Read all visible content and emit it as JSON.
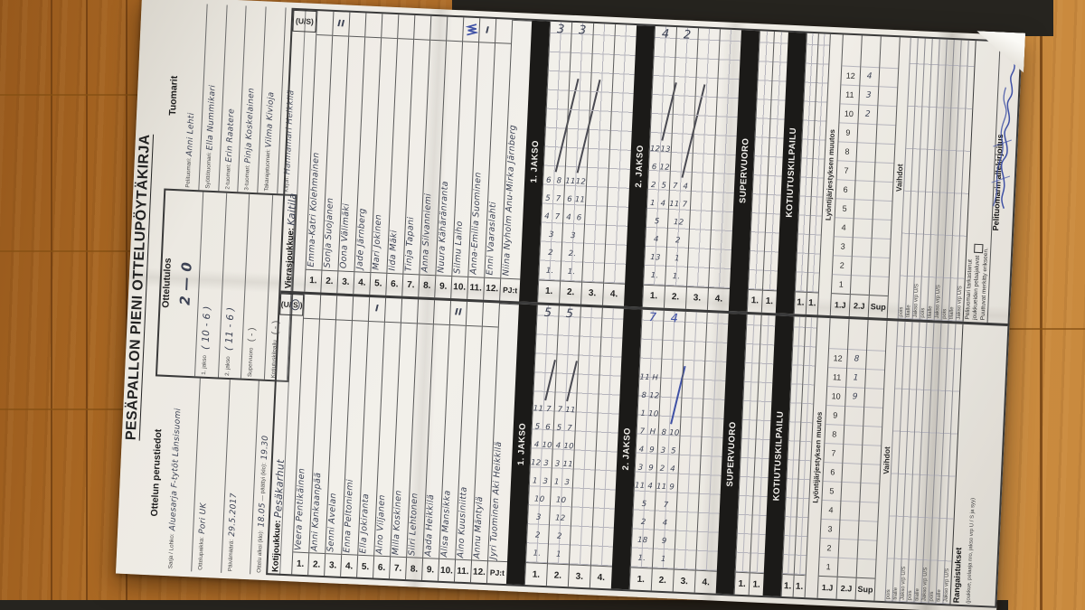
{
  "photo": {
    "wood_base": "#b5722c",
    "wood_light": "#ca8a3e",
    "plank_line": "#6e3d10",
    "dark_band": "#26241f",
    "paper": "#edeae3",
    "ink_print": "#2b2b2b",
    "ink_pen": "#3c4254",
    "ink_blue": "#3f51a5",
    "bar_black": "#1b1a18",
    "grid_line": "#b5b4bc"
  },
  "form": {
    "title": "PESÄPALLON PIENI OTTELUPÖYTÄKIRJA",
    "perustiedot": {
      "header": "Ottelun perustiedot",
      "fields": [
        {
          "label": "Sarja",
          "label2": "Lohko",
          "value": "Aluesarja F-tytöt Länsisuomi"
        },
        {
          "label": "Ottelupaikka",
          "value": "Pori UK"
        },
        {
          "label": "Päivämäärä",
          "value": "29.5.2017"
        },
        {
          "label": "Ottelu alkoi (klo)",
          "value": "18.05",
          "label2": "päättyi (klo)",
          "value2": "19.30"
        }
      ]
    },
    "ottelutulos": {
      "header": "Ottelutulos",
      "score": "2 — 0",
      "entries": [
        {
          "value": "( 10 - 6 )",
          "label": "1. jakso",
          "handwritten": true
        },
        {
          "value": "( 11 - 6 )",
          "label": "2. jakso",
          "handwritten": true
        },
        {
          "value": "(      -      )",
          "label": "Supervuoro",
          "handwritten": false
        },
        {
          "value": "(      -      )",
          "label": "Kotiutuskilpailu",
          "handwritten": false
        }
      ]
    },
    "tuomarit": {
      "header": "Tuomarit",
      "rows": [
        {
          "role": "Pelituomari",
          "name": "Anni Lehti"
        },
        {
          "role": "Syöttötuomari",
          "name": "Ella Nummikari"
        },
        {
          "role": "2-tuomari",
          "name": "Erin Raatere"
        },
        {
          "role": "3-tuomari",
          "name": "Pinja Koskelainen"
        },
        {
          "role": "Takarajatuomari",
          "name": "Vilma Kivioja"
        },
        {
          "role": "Kirjuri",
          "name": "Hannamari Heikkilä"
        }
      ]
    },
    "sections": {
      "jakso1": "1. JAKSO",
      "jakso2": "2. JAKSO",
      "supervuoro": "SUPERVUORO",
      "kotiutus": "KOTIUTUSKILPAILU",
      "lyonti": "Lyöntijärjestyksen muutos",
      "vaihdot": "Vaihdot",
      "vaihdot_cols": [
        "pois",
        "tilalle",
        "Jakso vrp U/S",
        "pois",
        "tilalle",
        "Jakso vrp U/S",
        "pois",
        "tilalle",
        "Jakso vrp U/S"
      ],
      "lyonti_rows": [
        "1.J",
        "2.J",
        "Sup"
      ],
      "us_header": "(U/S)",
      "pjt_label": "PJ:t"
    },
    "teams": {
      "away": {
        "label": "Vierasjoukkue:",
        "name": "Kaitila",
        "us_circled": false,
        "players": [
          {
            "no": "1.",
            "name": "Emma-Katri Kolehmainen",
            "mark": ""
          },
          {
            "no": "2.",
            "name": "Sonja Suojanen",
            "mark": "II"
          },
          {
            "no": "3.",
            "name": "Oona Välimäki",
            "mark": ""
          },
          {
            "no": "4.",
            "name": "Jade Järnberg",
            "mark": ""
          },
          {
            "no": "5.",
            "name": "Mari Jokinen",
            "mark": ""
          },
          {
            "no": "6.",
            "name": "Iida Mäki",
            "mark": ""
          },
          {
            "no": "7.",
            "name": "Tinja Tapani",
            "mark": ""
          },
          {
            "no": "8.",
            "name": "Anna Silvanniemi",
            "mark": ""
          },
          {
            "no": "9.",
            "name": "Nuura Kähäränranta",
            "mark": ""
          },
          {
            "no": "10.",
            "name": "Silmu Laiho",
            "mark": "scribble"
          },
          {
            "no": "11.",
            "name": "Anna-Emilia Suominen",
            "mark": "I"
          },
          {
            "no": "12.",
            "name": "Enni Vaaraslahti",
            "mark": ""
          }
        ],
        "pjt": "Niina Nyholm  Anu-Mirka Järnberg",
        "grid1": [
          {
            "label": "1.",
            "entries": [
              "1.",
              "2",
              "3",
              "4|7",
              "5|7",
              "6|8"
            ],
            "total": "3",
            "line": "pen"
          },
          {
            "label": "2.",
            "entries": [
              "1.",
              "2.",
              "3",
              "4|6",
              "6|11",
              "11|12"
            ],
            "total": "3",
            "line": "pen"
          },
          {
            "label": "3.",
            "entries": []
          },
          {
            "label": "4.",
            "entries": []
          }
        ],
        "grid2": [
          {
            "label": "1.",
            "entries": [
              "1.",
              "13",
              "4",
              "5",
              "1|4",
              "2|5",
              "6|12",
              "12|13"
            ],
            "total": "4",
            "line": "pen"
          },
          {
            "label": "2.",
            "entries": [
              "1.",
              "1",
              "2",
              "12",
              "11|7",
              "7|4"
            ],
            "total": "2",
            "line": "pen"
          },
          {
            "label": "3.",
            "entries": []
          },
          {
            "label": "4.",
            "entries": []
          }
        ],
        "sv": [
          {
            "label": "1."
          },
          {
            "label": "1."
          }
        ],
        "kk": [
          {
            "label": "1."
          },
          {
            "label": "1."
          }
        ],
        "lyonti_1j": [
          "1",
          "2",
          "3",
          "4",
          "5",
          "6",
          "7",
          "8",
          "9",
          "10",
          "11",
          "12"
        ],
        "lyonti_2j": [
          "",
          "",
          "",
          "",
          "",
          "",
          "",
          "",
          "",
          "2",
          "3",
          "4"
        ],
        "lyonti_sup": [
          "",
          "",
          "",
          "",
          "",
          "",
          "",
          "",
          "",
          "",
          "",
          ""
        ]
      },
      "home": {
        "label": "Kotijoukkue:",
        "name": "Pesäkarhut",
        "us_circled": true,
        "players": [
          {
            "no": "1.",
            "name": "Veera Pentikäinen",
            "mark": ""
          },
          {
            "no": "2.",
            "name": "Anni Kankaanpää",
            "mark": ""
          },
          {
            "no": "3.",
            "name": "Senni Avelan",
            "mark": ""
          },
          {
            "no": "4.",
            "name": "Enna Peltoniemi",
            "mark": ""
          },
          {
            "no": "5.",
            "name": "Ella Jokiranta",
            "mark": "I"
          },
          {
            "no": "6.",
            "name": "Aino Viljanen",
            "mark": ""
          },
          {
            "no": "7.",
            "name": "Milla Koskinen",
            "mark": ""
          },
          {
            "no": "8.",
            "name": "Siiri Lehtonen",
            "mark": ""
          },
          {
            "no": "9.",
            "name": "Aada Heikkilä",
            "mark": ""
          },
          {
            "no": "10.",
            "name": "Alisa Mansikka",
            "mark": "II"
          },
          {
            "no": "11.",
            "name": "Aino Kuusiniitta",
            "mark": ""
          },
          {
            "no": "12.",
            "name": "Annu Mäntylä",
            "mark": ""
          }
        ],
        "pjt": "Jyri Tuominen  Aki Heikkilä",
        "grid1": [
          {
            "label": "1.",
            "entries": [
              "1.",
              "2",
              "3",
              "10",
              "1|3",
              "12|3",
              "4|10",
              "5|6",
              "11|7"
            ],
            "total": "5",
            "line": "pen"
          },
          {
            "label": "2.",
            "entries": [
              "1",
              "2",
              "12",
              "10",
              "1|3",
              "3|11",
              "4|10",
              "5|7",
              "7|11"
            ],
            "total": "5",
            "line": "pen"
          },
          {
            "label": "3.",
            "entries": []
          },
          {
            "label": "4.",
            "entries": []
          }
        ],
        "grid2": [
          {
            "label": "1.",
            "entries": [
              "1.",
              "18",
              "2",
              "5",
              "11|4",
              "3|9",
              "4|9",
              "7|H",
              "1|10",
              "8|12",
              "11|H"
            ],
            "total": "7",
            "line": "blue"
          },
          {
            "label": "2.",
            "entries": [
              "1",
              "9",
              "4",
              "7",
              "11|9",
              "2|4",
              "3|5",
              "8|10"
            ],
            "total": "4",
            "line": "blue"
          },
          {
            "label": "3.",
            "entries": []
          },
          {
            "label": "4.",
            "entries": []
          }
        ],
        "sv": [
          {
            "label": "1."
          },
          {
            "label": "1."
          }
        ],
        "kk": [
          {
            "label": "1."
          },
          {
            "label": "1."
          }
        ],
        "lyonti_1j": [
          "1",
          "2",
          "3",
          "4",
          "5",
          "6",
          "7",
          "8",
          "9",
          "10",
          "11",
          "12"
        ],
        "lyonti_2j": [
          "",
          "",
          "",
          "",
          "",
          "",
          "",
          "",
          "",
          "9",
          "1",
          "8"
        ],
        "lyonti_sup": [
          "",
          "",
          "",
          "",
          "",
          "",
          "",
          "",
          "",
          "",
          "",
          ""
        ]
      }
    },
    "right": {
      "check_line1": "Pelituomari tarkastanut",
      "check_line2": "joukkueiden pelaajaluvat",
      "check_line3": "Puuttuvat merkitty erikseen.",
      "sign_label": "Pelituomarin allekirjoitus",
      "rang_label": "Rangaistukset",
      "rang_note": "(joukkue, pelaaja nro, jakso vrp U / S ja syy)"
    }
  }
}
